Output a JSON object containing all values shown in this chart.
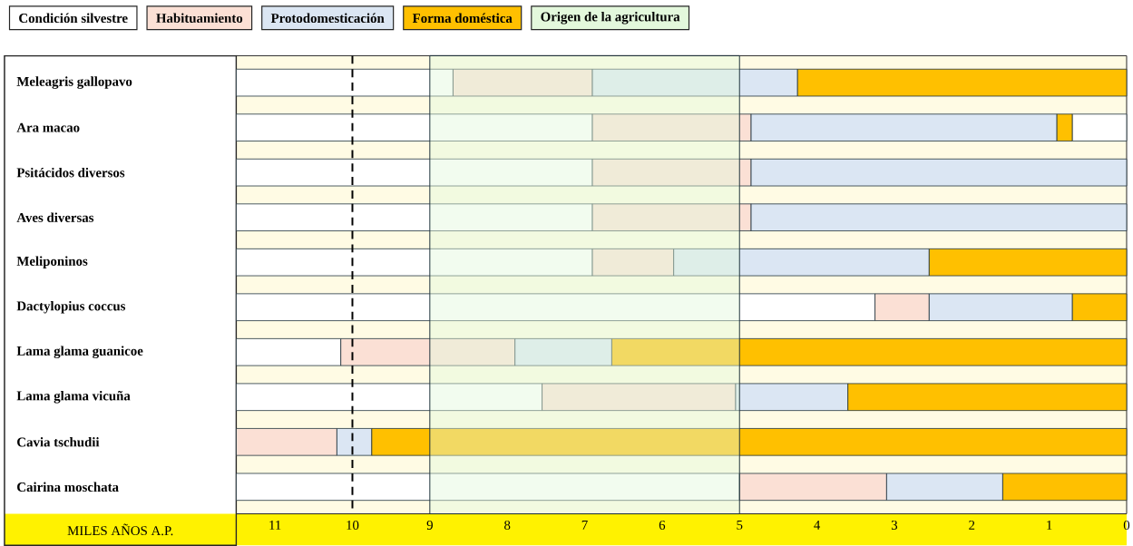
{
  "chart_data": {
    "type": "bar",
    "orientation": "horizontal",
    "categories": [
      "Meleagris gallopavo",
      "Ara macao",
      "Psitácidos diversos",
      "Aves diversas",
      "Meliponinos",
      "Dactylopius coccus",
      "Lama glama guanicoe",
      "Lama glama vicuña",
      "Cavia tschudii",
      "Cairina moschata"
    ],
    "xlabel": "MILES AÑOS A.P.",
    "xlim": [
      11.5,
      0
    ],
    "xticks": [
      11,
      10,
      9,
      8,
      7,
      6,
      5,
      4,
      3,
      2,
      1,
      0
    ],
    "series": [
      {
        "name": "Condición silvestre",
        "color": "#ffffff",
        "base": [
          8.7,
          6.9,
          6.9,
          6.9,
          6.9,
          3.25,
          10.15,
          7.55,
          null,
          5
        ],
        "values": [
          2.8,
          4.6,
          4.6,
          4.6,
          4.6,
          8.25,
          1.35,
          3.95,
          null,
          6.5
        ]
      },
      {
        "name": "Habituamiento",
        "color": "#fbe0d5",
        "base": [
          6.9,
          4.85,
          4.85,
          4.85,
          5.85,
          2.55,
          7.9,
          5.05,
          10.2,
          3.1
        ],
        "values": [
          1.8,
          2.05,
          2.05,
          2.05,
          1.05,
          0.7,
          2.25,
          2.5,
          1.3,
          1.9
        ]
      },
      {
        "name": "Protodomesticación",
        "color": "#dbe6f3",
        "base": [
          4.25,
          0.9,
          0,
          0,
          2.55,
          0.7,
          6.65,
          3.6,
          9.75,
          1.6
        ],
        "values": [
          2.65,
          3.95,
          4.85,
          4.85,
          3.3,
          1.85,
          1.25,
          1.45,
          0.45,
          1.5
        ]
      },
      {
        "name": "Forma doméstica",
        "color": "#ffc000",
        "base": [
          0,
          0.7,
          null,
          null,
          0,
          0,
          0,
          0,
          0,
          0
        ],
        "values": [
          4.25,
          0.2,
          null,
          null,
          2.55,
          0.7,
          6.65,
          3.6,
          9.75,
          1.6
        ]
      },
      {
        "color": "#ffffff",
        "base": [
          null,
          0,
          null,
          null,
          null,
          null,
          null,
          null,
          null,
          null
        ],
        "values": [
          null,
          0.7,
          null,
          null,
          null,
          null,
          null,
          null,
          null,
          null
        ]
      }
    ],
    "bands": [
      {
        "axis": "x",
        "from": 9,
        "to": 5,
        "label": "Origen de la agricultura",
        "color": "#e3f8dc"
      }
    ],
    "ref_lines": [
      {
        "axis": "x",
        "value": 10,
        "color": "#000000",
        "line_style": "dashed"
      }
    ],
    "legend": "top",
    "grid": false
  }
}
